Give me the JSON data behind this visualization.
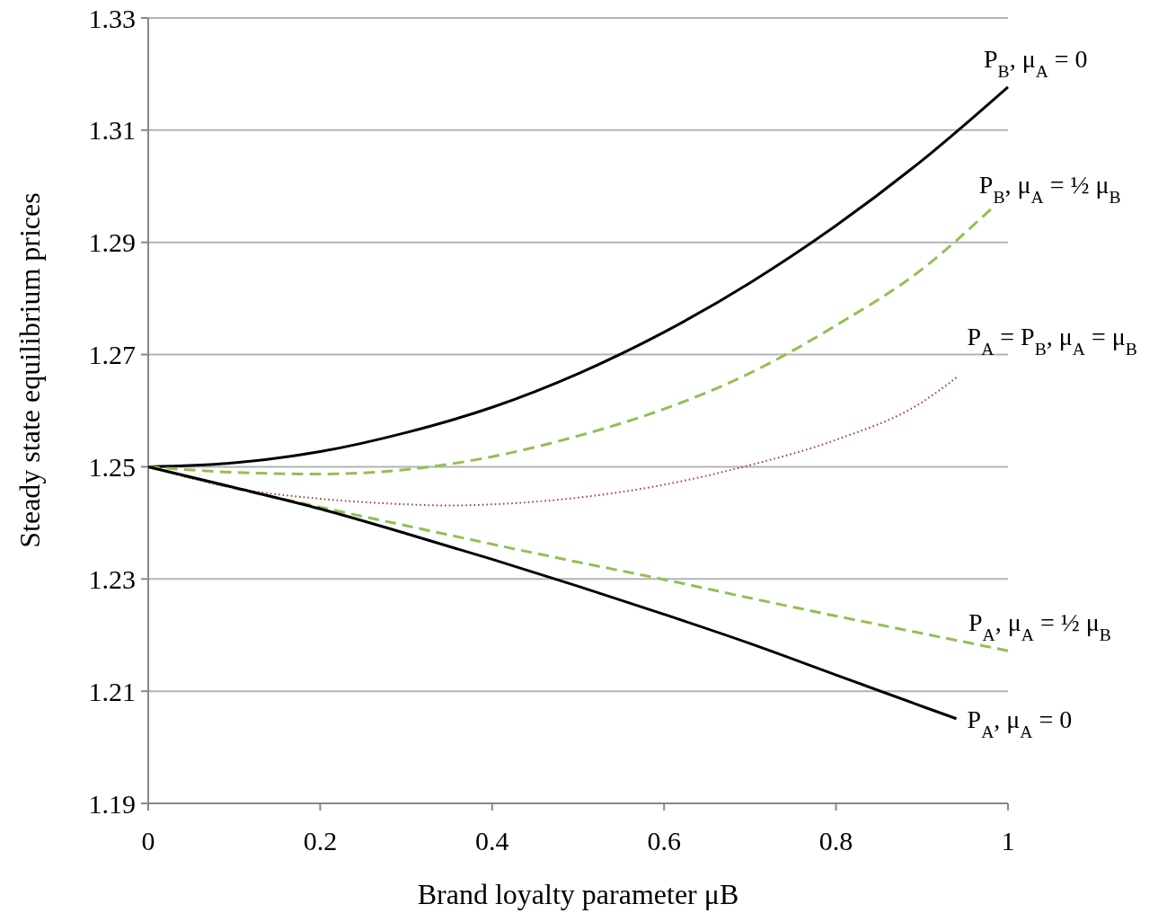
{
  "chart_data": {
    "type": "line",
    "xlabel": "Brand loyalty parameter μB",
    "ylabel": "Steady state equilibrium prices",
    "xlim": [
      0,
      1
    ],
    "xticks": [
      0,
      0.2,
      0.4,
      0.6,
      0.8,
      1
    ],
    "ylim": [
      1.19,
      1.33
    ],
    "yticks": [
      1.19,
      1.21,
      1.23,
      1.25,
      1.27,
      1.29,
      1.31,
      1.33
    ],
    "grid": "y",
    "marker": "none",
    "series": [
      {
        "name": "P$_{B}$, μ$_{A}$ = 0",
        "color": "#000000",
        "line_style": "solid",
        "x": [
          0,
          0.1,
          0.2,
          0.3,
          0.4,
          0.5,
          0.6,
          0.7,
          0.8,
          0.9,
          1
        ],
        "values": [
          1.25,
          1.2507,
          1.2527,
          1.2561,
          1.2606,
          1.2666,
          1.274,
          1.2828,
          1.293,
          1.3046,
          1.3177
        ]
      },
      {
        "name": "P$_{B}$, μ$_{A}$ = ½ μ$_{B}$",
        "color": "#92c050",
        "line_style": "dashed",
        "x": [
          0,
          0.1,
          0.2,
          0.3,
          0.4,
          0.5,
          0.6,
          0.7,
          0.8,
          0.9,
          0.98
        ],
        "values": [
          1.25,
          1.249,
          1.2487,
          1.2495,
          1.2518,
          1.2555,
          1.2603,
          1.2667,
          1.2752,
          1.2852,
          1.2959
        ]
      },
      {
        "name": "P$_{A}$ = P$_{B}$, μ$_{A}$ = μ$_{B}$",
        "color": "#a0403c",
        "line_style": "dotted",
        "x": [
          0,
          0.1,
          0.2,
          0.3,
          0.35,
          0.4,
          0.5,
          0.6,
          0.7,
          0.8,
          0.9,
          0.94
        ],
        "values": [
          1.25,
          1.2462,
          1.2443,
          1.2433,
          1.2431,
          1.2433,
          1.2445,
          1.2468,
          1.2503,
          1.2548,
          1.2615,
          1.2659
        ]
      },
      {
        "name": "P$_{A}$, μ$_{A}$ = ½ μ$_{B}$",
        "color": "#92c050",
        "line_style": "dashed",
        "x": [
          0,
          0.1,
          0.2,
          0.3,
          0.4,
          0.5,
          0.6,
          0.7,
          0.8,
          0.9,
          1
        ],
        "values": [
          1.25,
          1.2462,
          1.2428,
          1.2395,
          1.2362,
          1.233,
          1.2299,
          1.2266,
          1.2234,
          1.2203,
          1.2172
        ]
      },
      {
        "name": "P$_{A}$, μ$_{A}$ = 0",
        "color": "#000000",
        "line_style": "solid",
        "x": [
          0,
          0.1,
          0.2,
          0.3,
          0.4,
          0.5,
          0.6,
          0.7,
          0.8,
          0.9,
          0.94
        ],
        "values": [
          1.25,
          1.2463,
          1.2425,
          1.2381,
          1.2335,
          1.2287,
          1.2237,
          1.2185,
          1.2129,
          1.2073,
          1.2051
        ]
      }
    ]
  }
}
